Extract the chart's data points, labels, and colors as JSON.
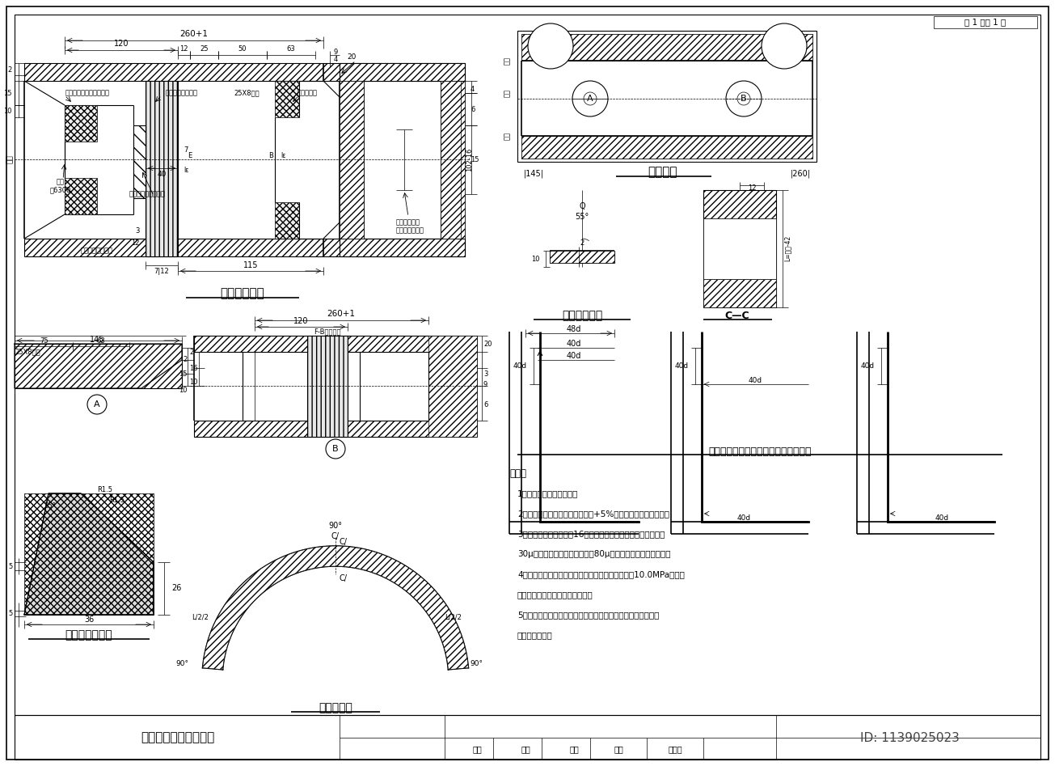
{
  "bg_color": "#ffffff",
  "title_text": "管接头大样图（变更）",
  "page_text": "第 1 页共 1 页",
  "id_text": "ID: 1139025023",
  "notes_title": "说明：",
  "notes": [
    "1、本图尺寸单位为毫米。",
    "2、衬垫材料为多层胶合板，误差+5%。应预先进行防腐处理。",
    "3、钢套环及钢环材料为16锰钢，采用环氧富锌底漆二度，每度",
    "30μ，环氧沥青面漆二度，每度80μ，钢套环接头内侧应磨平。",
    "4、契形橡胶圈材料为氯丁橡胶，接头处强度必须＞10.0MPa接头平",
    "整光滑，无痕迹，不允许有裂口。",
    "5、膨胀橡胶应在安装多层胶合板衬垫时同步粘贴，待压进去后",
    "与管内壁齐平。"
  ],
  "subtitle_anchor": "（钢筋混凝土墙拐角处钢筋的锚固图）"
}
